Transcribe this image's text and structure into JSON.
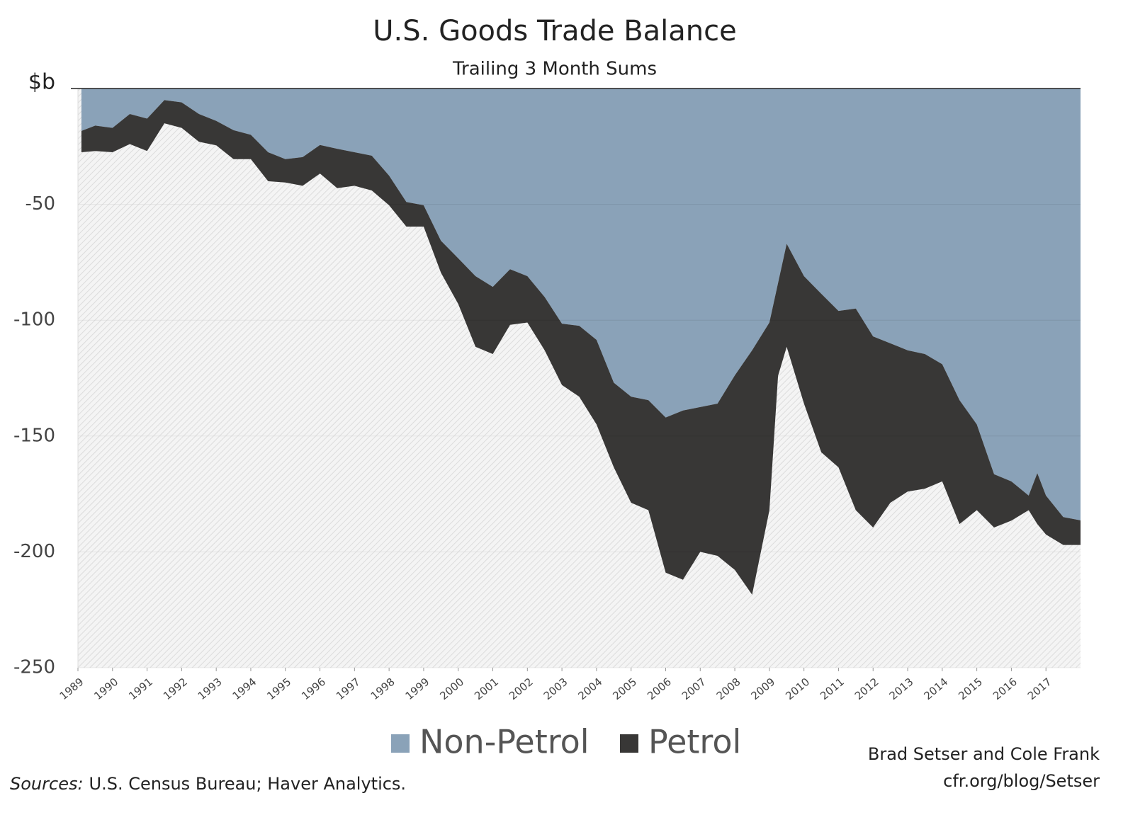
{
  "chart_data": {
    "type": "stacked-area",
    "title": "U.S. Goods Trade Balance",
    "subtitle": "Trailing 3 Month Sums",
    "y_label": "$b",
    "x": [
      1989.1,
      1989.5,
      1990,
      1990.5,
      1991,
      1991.5,
      1992,
      1992.5,
      1993,
      1993.5,
      1994,
      1994.5,
      1995,
      1995.5,
      1996,
      1996.5,
      1997,
      1997.5,
      1998,
      1998.5,
      1999,
      1999.5,
      2000,
      2000.5,
      2001,
      2001.5,
      2002,
      2002.5,
      2003,
      2003.5,
      2004,
      2004.5,
      2005,
      2005.5,
      2006,
      2006.5,
      2007,
      2007.5,
      2008,
      2008.5,
      2009,
      2009.25,
      2009.5,
      2010,
      2010.5,
      2011,
      2011.5,
      2012,
      2012.5,
      2013,
      2013.5,
      2014,
      2014.5,
      2015,
      2015.5,
      2016,
      2016.5,
      2016.75,
      2017,
      2017.5,
      2018
    ],
    "series": [
      {
        "name": "Non-Petrol",
        "color": "#8aa2b8",
        "values": [
          -18.3,
          -16,
          -17,
          -11,
          -13,
          -5,
          -6,
          -11,
          -14,
          -18,
          -20,
          -27.5,
          -30.5,
          -29.6,
          -24.4,
          -26,
          -27.5,
          -29,
          -37.6,
          -49,
          -50.4,
          -65.7,
          -73.3,
          -81,
          -85.6,
          -78,
          -81,
          -90,
          -101.5,
          -102.4,
          -108.5,
          -127,
          -133,
          -134.5,
          -142,
          -139,
          -137.5,
          -136,
          -123.8,
          -113,
          -101,
          -84,
          -67,
          -81,
          -88.6,
          -96,
          -95,
          -107,
          -110,
          -113,
          -114.6,
          -119,
          -134.5,
          -145,
          -166.5,
          -169.6,
          -175.7,
          -166,
          -175.7,
          -185,
          -186.4
        ]
      },
      {
        "name": "Petrol",
        "color": "#383736",
        "values": [
          -9.2,
          -11,
          -10.5,
          -13,
          -14,
          -10,
          -11,
          -12,
          -10.5,
          -12.5,
          -10.5,
          -12.5,
          -10.1,
          -12.4,
          -12.3,
          -17,
          -14.5,
          -15,
          -12.8,
          -10.6,
          -9.2,
          -13.8,
          -19.7,
          -30.5,
          -29,
          -24,
          -20,
          -23,
          -26.5,
          -30.6,
          -36.5,
          -36.5,
          -45.8,
          -47.5,
          -67,
          -73,
          -62.5,
          -65.7,
          -84,
          -105.5,
          -81,
          -40,
          -44.5,
          -55,
          -68.4,
          -67.5,
          -87,
          -82.5,
          -68.8,
          -61,
          -58.1,
          -50.6,
          -53.5,
          -37,
          -23,
          -16.9,
          -6.3,
          -22,
          -16.8,
          -12,
          -10.6
        ]
      }
    ],
    "xlim": [
      1989,
      2018
    ],
    "xticks": [
      1989,
      1990,
      1991,
      1992,
      1993,
      1994,
      1995,
      1996,
      1997,
      1998,
      1999,
      2000,
      2001,
      2002,
      2003,
      2004,
      2005,
      2006,
      2007,
      2008,
      2009,
      2010,
      2011,
      2012,
      2013,
      2014,
      2015,
      2016,
      2017
    ],
    "ylim": [
      -250,
      0
    ],
    "yticks": [
      -50,
      -100,
      -150,
      -200,
      -250
    ],
    "grid": true,
    "legend": "bottom",
    "source_label": "Sources:",
    "source_text": "U.S. Census Bureau; Haver Analytics.",
    "credit": [
      "Brad Setser and Cole Frank",
      "cfr.org/blog/Setser"
    ]
  }
}
